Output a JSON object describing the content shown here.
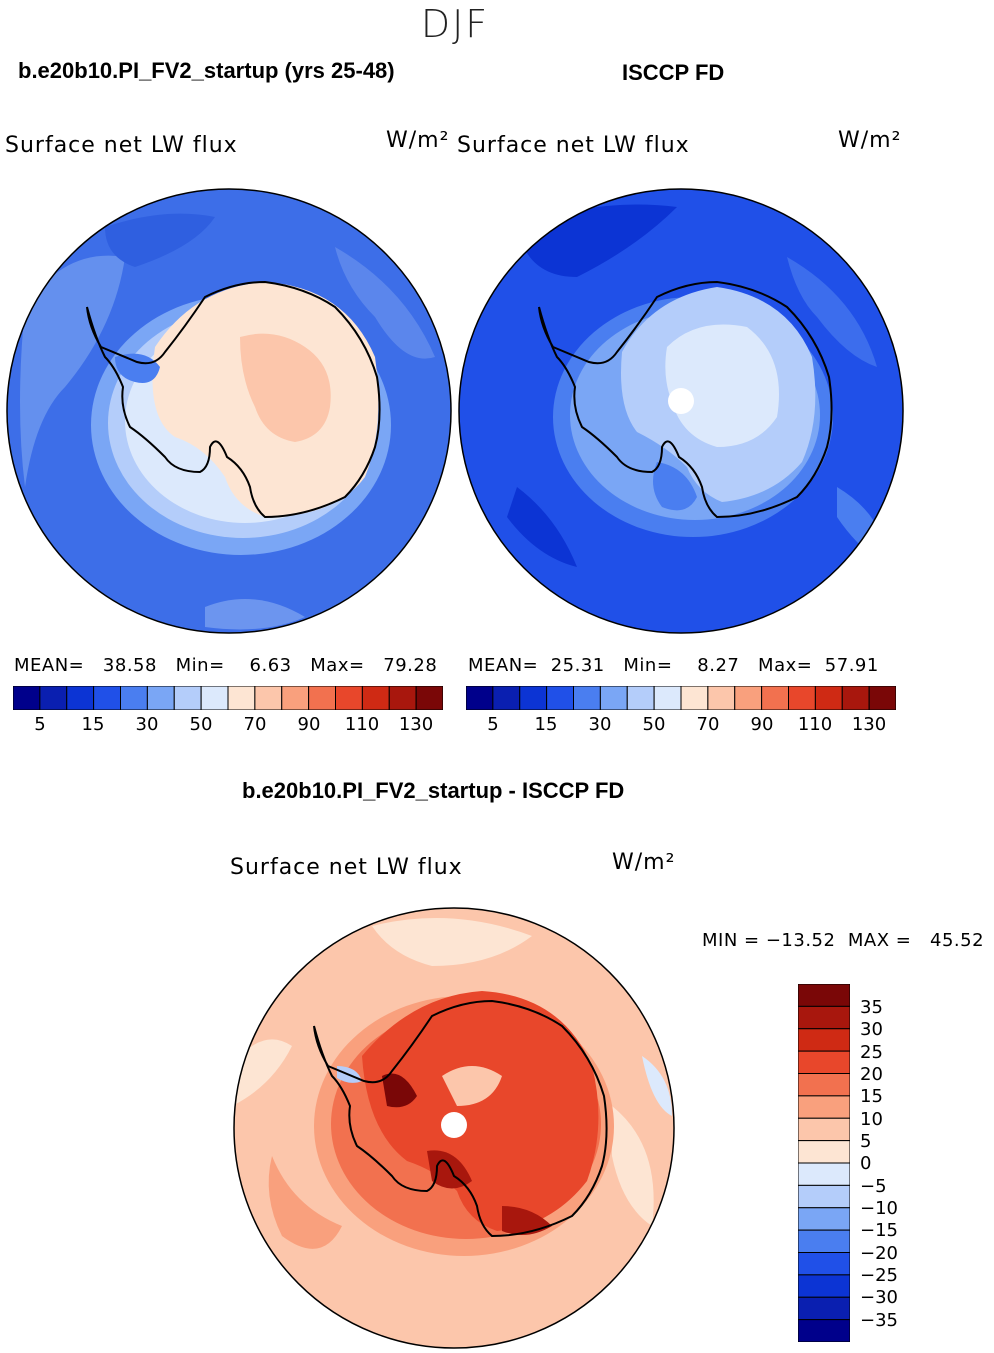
{
  "figure": {
    "season_title": "DJF"
  },
  "panels": [
    {
      "id": "model",
      "title": "b.e20b10.PI_FV2_startup (yrs 25-48)",
      "variable": "Surface net LW flux",
      "units": "W/m²",
      "stats_text": "MEAN=   38.58   Min=    6.63   Max=   79.28"
    },
    {
      "id": "obs",
      "title": "ISCCP FD",
      "variable": "Surface net LW flux",
      "units": "W/m²",
      "stats_text": "MEAN=  25.31   Min=    8.27   Max=  57.91"
    },
    {
      "id": "diff",
      "title": "b.e20b10.PI_FV2_startup - ISCCP FD",
      "variable": "Surface net LW flux",
      "units": "W/m²",
      "stats_text": "MIN = −13.52  MAX =   45.52"
    }
  ],
  "abs_colorbar": {
    "colors": [
      "#00008b",
      "#0a1fb0",
      "#0c34d4",
      "#2050e8",
      "#4a7ef0",
      "#7aa6f5",
      "#b4cdfa",
      "#dce9fc",
      "#fde5d3",
      "#fcc6ab",
      "#f9a07d",
      "#f2714f",
      "#e8472b",
      "#cf2a14",
      "#a8170d",
      "#7a0707"
    ],
    "tick_labels": [
      "5",
      "15",
      "30",
      "50",
      "70",
      "90",
      "110",
      "130"
    ]
  },
  "diff_colorbar": {
    "colors": [
      "#7a0707",
      "#a8170d",
      "#cf2a14",
      "#e8472b",
      "#f2714f",
      "#f9a07d",
      "#fcc6ab",
      "#fde5d3",
      "#dce9fc",
      "#b4cdfa",
      "#7aa6f5",
      "#4a7ef0",
      "#2050e8",
      "#0c34d4",
      "#0a1fb0",
      "#00008b"
    ],
    "tick_labels": [
      "35",
      "30",
      "25",
      "20",
      "15",
      "10",
      "5",
      "0",
      "−5",
      "−10",
      "−15",
      "−20",
      "−25",
      "−30",
      "−35"
    ]
  }
}
